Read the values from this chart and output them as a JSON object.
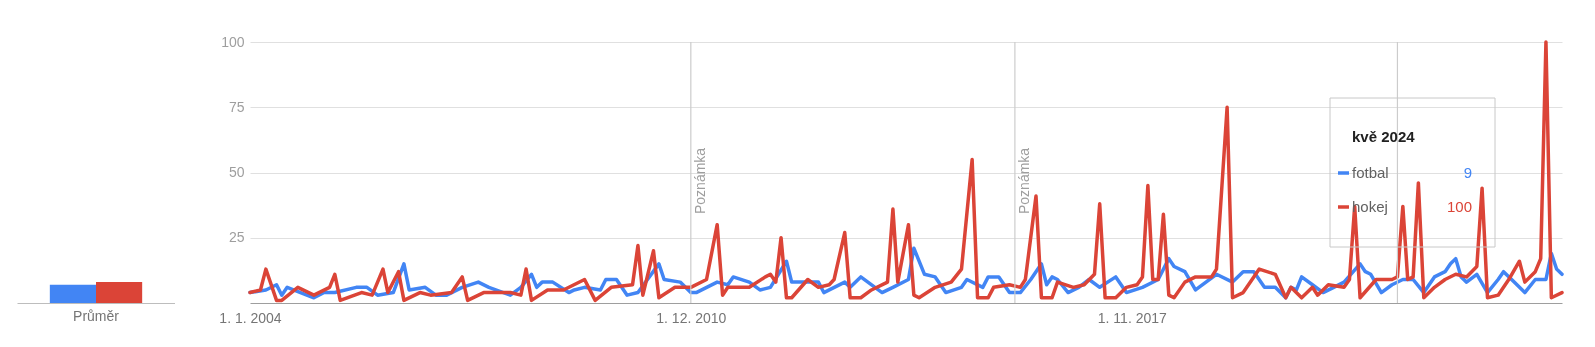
{
  "chart_data": [
    {
      "type": "bar",
      "categories": [
        "Průměr"
      ],
      "ylim": [
        0,
        100
      ],
      "tick_labels": "x",
      "series": [
        {
          "color": "#4285f4",
          "values": [
            7
          ]
        },
        {
          "color": "#db4437",
          "values": [
            8
          ]
        }
      ]
    },
    {
      "type": "line",
      "xlim": [
        "2004-01",
        "2024-08"
      ],
      "ylim": [
        0,
        100
      ],
      "yticks": [
        25,
        50,
        75,
        100
      ],
      "xticks": [
        {
          "value": "2004-01",
          "label": "1. 1. 2004"
        },
        {
          "value": "2010-12",
          "label": "1. 12. 2010"
        },
        {
          "value": "2017-11",
          "label": "1. 11. 2017"
        }
      ],
      "grid": "y",
      "legend": "right",
      "legend_title": "kvě 2024",
      "ref_lines": [
        {
          "axis": "x",
          "value": "2010-12",
          "label": "Poznámka"
        },
        {
          "axis": "x",
          "value": "2016-01",
          "label": "Poznámka"
        },
        {
          "axis": "x",
          "value": "2022-01"
        }
      ],
      "annotations": [
        "9",
        "100"
      ],
      "series": [
        {
          "name": "fotbal",
          "color": "#4285f4",
          "x": [
            "2004-01",
            "2004-04",
            "2004-06",
            "2004-07",
            "2004-08",
            "2005-01",
            "2005-03",
            "2005-05",
            "2005-09",
            "2005-11",
            "2006-01",
            "2006-04",
            "2006-06",
            "2006-07",
            "2006-10",
            "2006-12",
            "2007-02",
            "2007-05",
            "2007-08",
            "2007-10",
            "2008-02",
            "2008-04",
            "2008-06",
            "2008-07",
            "2008-08",
            "2008-10",
            "2009-01",
            "2009-02",
            "2009-04",
            "2009-07",
            "2009-08",
            "2009-10",
            "2009-12",
            "2010-02",
            "2010-06",
            "2010-07",
            "2010-10",
            "2010-12",
            "2011-01",
            "2011-05",
            "2011-07",
            "2011-08",
            "2011-11",
            "2012-01",
            "2012-03",
            "2012-06",
            "2012-07",
            "2012-12",
            "2013-01",
            "2013-05",
            "2013-06",
            "2013-08",
            "2013-12",
            "2014-02",
            "2014-05",
            "2014-06",
            "2014-08",
            "2014-10",
            "2014-12",
            "2015-03",
            "2015-04",
            "2015-07",
            "2015-08",
            "2015-10",
            "2015-12",
            "2016-02",
            "2016-04",
            "2016-06",
            "2016-07",
            "2016-08",
            "2016-09",
            "2016-11",
            "2017-01",
            "2017-03",
            "2017-05",
            "2017-08",
            "2017-10",
            "2018-01",
            "2018-04",
            "2018-06",
            "2018-07",
            "2018-09",
            "2018-11",
            "2019-03",
            "2019-06",
            "2019-08",
            "2019-10",
            "2019-12",
            "2020-02",
            "2020-04",
            "2020-05",
            "2020-06",
            "2020-07",
            "2020-09",
            "2020-11",
            "2021-01",
            "2021-03",
            "2021-06",
            "2021-07",
            "2021-08",
            "2021-10",
            "2021-12",
            "2022-02",
            "2022-04",
            "2022-06",
            "2022-08",
            "2022-10",
            "2022-11",
            "2022-12",
            "2023-01",
            "2023-02",
            "2023-04",
            "2023-06",
            "2023-08",
            "2023-09",
            "2023-11",
            "2024-01",
            "2024-03",
            "2024-05",
            "2024-06",
            "2024-07",
            "2024-08"
          ],
          "values": [
            4,
            5,
            7,
            3,
            6,
            2,
            4,
            4,
            6,
            6,
            3,
            4,
            15,
            5,
            6,
            3,
            3,
            6,
            8,
            6,
            3,
            6,
            11,
            6,
            8,
            8,
            4,
            5,
            6,
            5,
            9,
            9,
            3,
            4,
            15,
            9,
            8,
            4,
            4,
            8,
            7,
            10,
            8,
            5,
            6,
            16,
            8,
            8,
            4,
            8,
            6,
            10,
            4,
            6,
            9,
            21,
            11,
            10,
            4,
            6,
            9,
            6,
            10,
            10,
            4,
            4,
            9,
            15,
            7,
            10,
            9,
            4,
            6,
            9,
            6,
            10,
            4,
            6,
            9,
            17,
            14,
            12,
            5,
            11,
            8,
            12,
            12,
            6,
            6,
            2,
            6,
            5,
            10,
            7,
            4,
            6,
            8,
            15,
            12,
            11,
            4,
            7,
            9,
            9,
            4,
            10,
            12,
            15,
            17,
            10,
            8,
            11,
            4,
            9,
            12,
            8,
            4,
            9,
            9,
            19,
            13,
            11
          ]
        },
        {
          "name": "hokej",
          "color": "#db4437",
          "x": [
            "2004-01",
            "2004-03",
            "2004-04",
            "2004-06",
            "2004-07",
            "2004-10",
            "2005-01",
            "2005-04",
            "2005-05",
            "2005-06",
            "2005-10",
            "2005-12",
            "2006-02",
            "2006-03",
            "2006-05",
            "2006-06",
            "2006-09",
            "2006-11",
            "2007-03",
            "2007-05",
            "2007-06",
            "2007-09",
            "2007-12",
            "2008-02",
            "2008-04",
            "2008-05",
            "2008-06",
            "2008-09",
            "2008-12",
            "2009-04",
            "2009-06",
            "2009-09",
            "2010-01",
            "2010-02",
            "2010-03",
            "2010-05",
            "2010-06",
            "2010-09",
            "2010-12",
            "2011-03",
            "2011-05",
            "2011-06",
            "2011-07",
            "2011-11",
            "2012-02",
            "2012-03",
            "2012-04",
            "2012-05",
            "2012-06",
            "2012-07",
            "2012-10",
            "2012-12",
            "2013-02",
            "2013-03",
            "2013-05",
            "2013-06",
            "2013-08",
            "2013-10",
            "2014-01",
            "2014-02",
            "2014-03",
            "2014-05",
            "2014-06",
            "2014-07",
            "2014-10",
            "2015-01",
            "2015-03",
            "2015-05",
            "2015-06",
            "2015-08",
            "2015-09",
            "2015-12",
            "2016-02",
            "2016-03",
            "2016-05",
            "2016-06",
            "2016-08",
            "2016-09",
            "2016-12",
            "2017-02",
            "2017-04",
            "2017-05",
            "2017-06",
            "2017-08",
            "2017-10",
            "2017-12",
            "2018-01",
            "2018-02",
            "2018-03",
            "2018-04",
            "2018-05",
            "2018-06",
            "2018-07",
            "2018-09",
            "2018-11",
            "2019-02",
            "2019-03",
            "2019-05",
            "2019-06",
            "2019-08",
            "2019-10",
            "2019-11",
            "2020-02",
            "2020-04",
            "2020-05",
            "2020-07",
            "2020-09",
            "2020-10",
            "2020-12",
            "2021-03",
            "2021-04",
            "2021-05",
            "2021-06",
            "2021-09",
            "2021-12",
            "2022-01",
            "2022-02",
            "2022-03",
            "2022-04",
            "2022-05",
            "2022-06",
            "2022-08",
            "2022-10",
            "2022-12",
            "2023-02",
            "2023-04",
            "2023-05",
            "2023-06",
            "2023-08",
            "2023-10",
            "2023-12",
            "2024-01",
            "2024-03",
            "2024-04",
            "2024-05",
            "2024-06",
            "2024-08"
          ],
          "values": [
            4,
            5,
            13,
            1,
            1,
            6,
            3,
            6,
            11,
            1,
            4,
            3,
            13,
            4,
            12,
            1,
            4,
            3,
            4,
            10,
            1,
            4,
            4,
            4,
            3,
            13,
            1,
            5,
            5,
            9,
            1,
            6,
            7,
            22,
            3,
            20,
            2,
            6,
            6,
            9,
            30,
            3,
            6,
            6,
            10,
            11,
            8,
            25,
            2,
            2,
            9,
            6,
            7,
            9,
            27,
            2,
            2,
            5,
            8,
            36,
            8,
            30,
            3,
            2,
            6,
            8,
            13,
            55,
            2,
            2,
            6,
            7,
            6,
            9,
            41,
            2,
            2,
            8,
            6,
            7,
            11,
            38,
            2,
            2,
            6,
            7,
            10,
            45,
            9,
            9,
            34,
            3,
            2,
            8,
            10,
            10,
            13,
            75,
            2,
            4,
            10,
            13,
            11,
            2,
            6,
            2,
            6,
            3,
            7,
            6,
            9,
            37,
            2,
            9,
            9,
            10,
            37,
            9,
            10,
            46,
            2,
            6,
            9,
            11,
            10,
            14,
            44,
            2,
            3,
            9,
            16,
            8,
            12,
            17,
            100,
            2,
            4
          ]
        }
      ]
    }
  ]
}
